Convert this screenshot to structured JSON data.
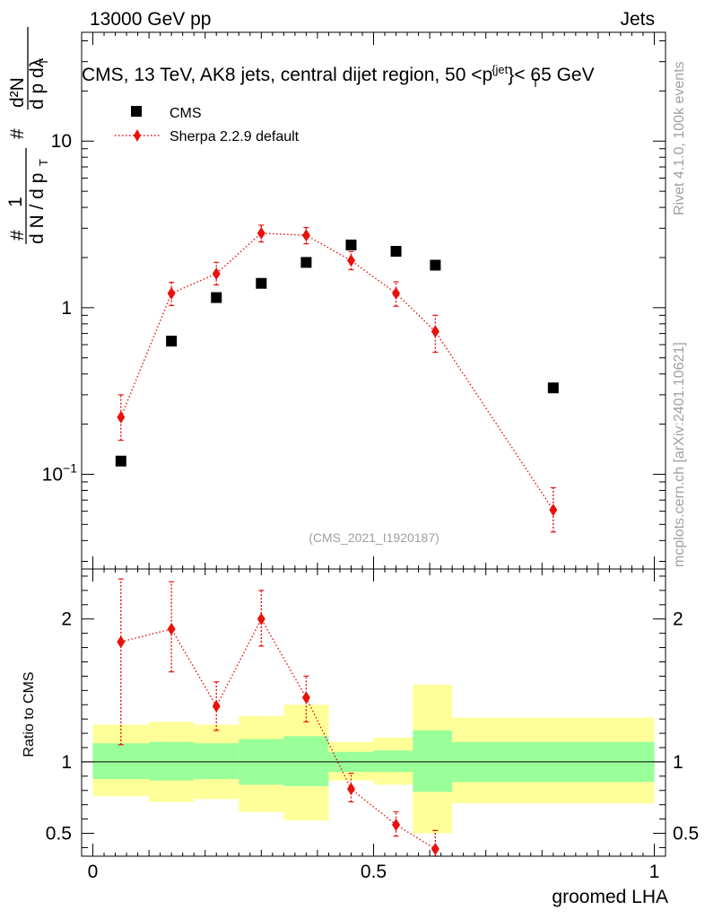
{
  "header": {
    "energy_label": "13000 GeV pp",
    "category_label": "Jets"
  },
  "watermark": {
    "rivet_label": "Rivet 4.1.0,  100k events",
    "mcplots_label": "mcplots.cern.ch [arXiv:2401.10621]"
  },
  "colors": {
    "data": "#000000",
    "mc": "#e8120d",
    "band_inner": "#99ff99",
    "band_outer": "#ffff99",
    "analysis_id": "#a0a0a0"
  },
  "chart_data": [
    {
      "type": "scatter",
      "panel": "main",
      "title": "CMS, 13 TeV, AK8 jets, central dijet region, 50 <p_T^{jet}< 65 GeV",
      "title_parts": {
        "prefix": "CMS, 13 TeV, AK8 jets, central dijet region, 50 <p",
        "sub": "T",
        "sup": "{jet",
        "suffix": "}< 65 GeV"
      },
      "ylabel": "1/(dN/dp_T) d²N/(dp_T dλ)",
      "ylabel_parts": {
        "num_hash": "#",
        "one": "1",
        "den": "d N / d p",
        "den_sub": "T",
        "frac2_hash_top": "#",
        "frac2_num": "d²N",
        "frac2_den": "d p  dλ",
        "frac2_den_sub": "T"
      },
      "yscale": "log",
      "ylim": [
        0.027,
        45
      ],
      "xlim": [
        -0.02,
        1.02
      ],
      "y_ticks": [
        {
          "value": 0.1,
          "label": "10",
          "sup": "−1"
        },
        {
          "value": 1,
          "label": "1",
          "sup": ""
        },
        {
          "value": 10,
          "label": "10",
          "sup": ""
        }
      ],
      "analysis_id": "(CMS_2021_I1920187)",
      "legend_position": "top-left",
      "series": [
        {
          "name": "CMS",
          "marker": "square",
          "x": [
            0.05,
            0.14,
            0.22,
            0.3,
            0.38,
            0.46,
            0.54,
            0.61,
            0.82
          ],
          "y": [
            0.12,
            0.63,
            1.15,
            1.4,
            1.87,
            2.38,
            2.18,
            1.8,
            0.33
          ]
        },
        {
          "name": "Sherpa 2.2.9 default",
          "marker": "diamond",
          "line": "dotted",
          "x": [
            0.05,
            0.14,
            0.22,
            0.3,
            0.38,
            0.46,
            0.54,
            0.61,
            0.82
          ],
          "y": [
            0.22,
            1.22,
            1.6,
            2.8,
            2.72,
            1.92,
            1.22,
            0.72,
            0.061
          ],
          "y_err_low": [
            0.16,
            1.03,
            1.37,
            2.48,
            2.42,
            1.69,
            1.02,
            0.54,
            0.045
          ],
          "y_err_high": [
            0.3,
            1.42,
            1.87,
            3.13,
            3.03,
            2.17,
            1.43,
            0.9,
            0.083
          ]
        }
      ]
    },
    {
      "type": "line",
      "panel": "ratio",
      "ylabel": "Ratio to CMS",
      "xlabel": "groomed LHA",
      "ylim": [
        0.34,
        2.35
      ],
      "xlim": [
        -0.02,
        1.02
      ],
      "x_ticks": [
        {
          "value": 0,
          "label": "0"
        },
        {
          "value": 0.5,
          "label": "0.5"
        },
        {
          "value": 1,
          "label": "1"
        }
      ],
      "y_ticks": [
        {
          "value": 0.5,
          "label": "0.5"
        },
        {
          "value": 1,
          "label": "1"
        },
        {
          "value": 2,
          "label": "2"
        }
      ],
      "bands": [
        {
          "x0": 0.0,
          "x1": 0.1,
          "inner": [
            0.88,
            1.13
          ],
          "outer": [
            0.76,
            1.26
          ]
        },
        {
          "x0": 0.1,
          "x1": 0.18,
          "inner": [
            0.87,
            1.14
          ],
          "outer": [
            0.72,
            1.28
          ]
        },
        {
          "x0": 0.18,
          "x1": 0.26,
          "inner": [
            0.88,
            1.13
          ],
          "outer": [
            0.74,
            1.26
          ]
        },
        {
          "x0": 0.26,
          "x1": 0.34,
          "inner": [
            0.84,
            1.16
          ],
          "outer": [
            0.65,
            1.32
          ]
        },
        {
          "x0": 0.34,
          "x1": 0.42,
          "inner": [
            0.83,
            1.18
          ],
          "outer": [
            0.59,
            1.4
          ]
        },
        {
          "x0": 0.42,
          "x1": 0.5,
          "inner": [
            0.93,
            1.07
          ],
          "outer": [
            0.87,
            1.14
          ]
        },
        {
          "x0": 0.5,
          "x1": 0.57,
          "inner": [
            0.93,
            1.08
          ],
          "outer": [
            0.84,
            1.17
          ]
        },
        {
          "x0": 0.57,
          "x1": 0.64,
          "inner": [
            0.79,
            1.22
          ],
          "outer": [
            0.5,
            1.54
          ]
        },
        {
          "x0": 0.64,
          "x1": 1.0,
          "inner": [
            0.86,
            1.14
          ],
          "outer": [
            0.71,
            1.31
          ]
        }
      ],
      "series": [
        {
          "name": "Sherpa 2.2.9 default / CMS",
          "marker": "diamond",
          "line": "dotted",
          "x": [
            0.05,
            0.14,
            0.22,
            0.3,
            0.38,
            0.46,
            0.54,
            0.61
          ],
          "y": [
            1.84,
            1.93,
            1.39,
            2.0,
            1.45,
            0.81,
            0.56,
            0.39
          ],
          "y_err_low": [
            1.12,
            1.63,
            1.22,
            1.81,
            1.28,
            0.72,
            0.48,
            0.3
          ],
          "y_err_high": [
            2.28,
            2.26,
            1.56,
            2.2,
            1.6,
            0.92,
            0.65,
            0.52
          ]
        }
      ]
    }
  ]
}
